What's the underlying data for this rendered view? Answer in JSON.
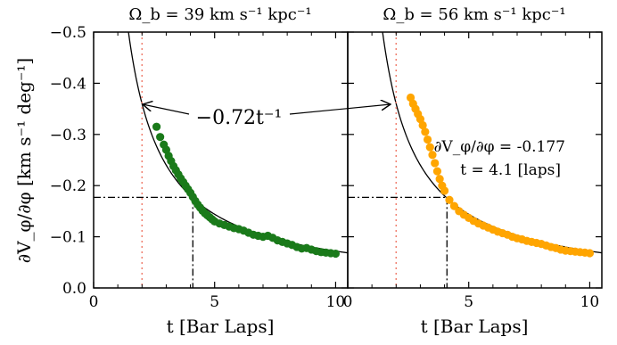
{
  "chart_data": [
    {
      "type": "scatter",
      "title": "Ω_b = 39 km s⁻¹ kpc⁻¹",
      "xlabel": "t [Bar Laps]",
      "ylabel": "∂V_φ/∂φ [km s⁻¹ deg⁻¹]",
      "xlim": [
        0,
        10.5
      ],
      "ylim": [
        0,
        -0.5
      ],
      "y_inverted": true,
      "xticks": [
        "0",
        "5",
        "10"
      ],
      "yticks": [
        "0.0",
        "−0.1",
        "−0.2",
        "−0.3",
        "−0.4",
        "−0.5"
      ],
      "grid": false,
      "color": "#1a7a1a",
      "points": {
        "x": [
          2.6,
          2.75,
          2.9,
          3.0,
          3.1,
          3.2,
          3.3,
          3.4,
          3.5,
          3.6,
          3.7,
          3.8,
          3.9,
          4.0,
          4.1,
          4.2,
          4.3,
          4.4,
          4.5,
          4.6,
          4.7,
          4.8,
          4.9,
          5.0,
          5.2,
          5.4,
          5.6,
          5.8,
          6.0,
          6.2,
          6.4,
          6.6,
          6.8,
          7.0,
          7.2,
          7.4,
          7.6,
          7.8,
          8.0,
          8.2,
          8.4,
          8.6,
          8.8,
          9.0,
          9.2,
          9.4,
          9.6,
          9.8,
          10.0
        ],
        "y": [
          -0.315,
          -0.295,
          -0.28,
          -0.27,
          -0.258,
          -0.248,
          -0.238,
          -0.23,
          -0.222,
          -0.214,
          -0.207,
          -0.2,
          -0.193,
          -0.186,
          -0.178,
          -0.17,
          -0.163,
          -0.157,
          -0.151,
          -0.146,
          -0.142,
          -0.138,
          -0.134,
          -0.13,
          -0.126,
          -0.123,
          -0.12,
          -0.117,
          -0.115,
          -0.112,
          -0.108,
          -0.104,
          -0.102,
          -0.1,
          -0.102,
          -0.098,
          -0.093,
          -0.09,
          -0.087,
          -0.084,
          -0.08,
          -0.077,
          -0.078,
          -0.075,
          -0.072,
          -0.07,
          -0.069,
          -0.068,
          -0.067
        ]
      },
      "fit_curve": {
        "label": "−0.72t⁻¹",
        "coefficient": -0.72
      },
      "vertical_dotted_line_x": 2.0,
      "crosshair": {
        "x": 4.1,
        "y": -0.177
      }
    },
    {
      "type": "scatter",
      "title": "Ω_b = 56 km s⁻¹ kpc⁻¹",
      "xlabel": "t [Bar Laps]",
      "xlim": [
        0,
        10.5
      ],
      "ylim": [
        0,
        -0.5
      ],
      "y_inverted": true,
      "xticks": [
        "0",
        "5",
        "10"
      ],
      "grid": false,
      "color": "#ffa500",
      "points": {
        "x": [
          2.6,
          2.7,
          2.8,
          2.9,
          3.0,
          3.1,
          3.2,
          3.3,
          3.4,
          3.5,
          3.6,
          3.7,
          3.8,
          3.9,
          4.0,
          4.2,
          4.4,
          4.6,
          4.8,
          5.0,
          5.2,
          5.4,
          5.6,
          5.8,
          6.0,
          6.2,
          6.4,
          6.6,
          6.8,
          7.0,
          7.2,
          7.4,
          7.6,
          7.8,
          8.0,
          8.2,
          8.4,
          8.6,
          8.8,
          9.0,
          9.2,
          9.4,
          9.6,
          9.8,
          10.0
        ],
        "y": [
          -0.372,
          -0.36,
          -0.35,
          -0.34,
          -0.33,
          -0.318,
          -0.305,
          -0.29,
          -0.275,
          -0.26,
          -0.244,
          -0.228,
          -0.213,
          -0.2,
          -0.19,
          -0.172,
          -0.16,
          -0.15,
          -0.143,
          -0.137,
          -0.131,
          -0.126,
          -0.122,
          -0.118,
          -0.114,
          -0.11,
          -0.107,
          -0.104,
          -0.1,
          -0.097,
          -0.095,
          -0.092,
          -0.09,
          -0.088,
          -0.086,
          -0.083,
          -0.08,
          -0.078,
          -0.075,
          -0.073,
          -0.072,
          -0.071,
          -0.07,
          -0.069,
          -0.068
        ]
      },
      "fit_curve": {
        "coefficient": -0.72
      },
      "vertical_dotted_line_x": 2.0,
      "crosshair": {
        "x": 4.1,
        "y": -0.177
      },
      "annotation": {
        "line1": "∂V_φ/∂φ = -0.177",
        "line2": "t = 4.1 [laps]"
      }
    }
  ]
}
